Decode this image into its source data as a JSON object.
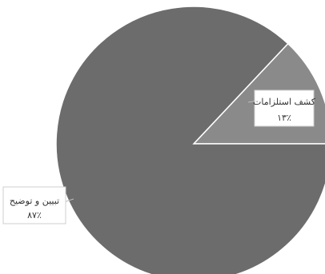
{
  "chart_data": {
    "type": "pie",
    "slices": [
      {
        "label": "کشف استلزامات",
        "value": 13,
        "value_label": "۱۳٪",
        "color": "#8a8a8a"
      },
      {
        "label": "تبیین و توضیح",
        "value": 87,
        "value_label": "۸۷٪",
        "color": "#6c6c6c"
      }
    ],
    "title": "",
    "legend": "none"
  }
}
